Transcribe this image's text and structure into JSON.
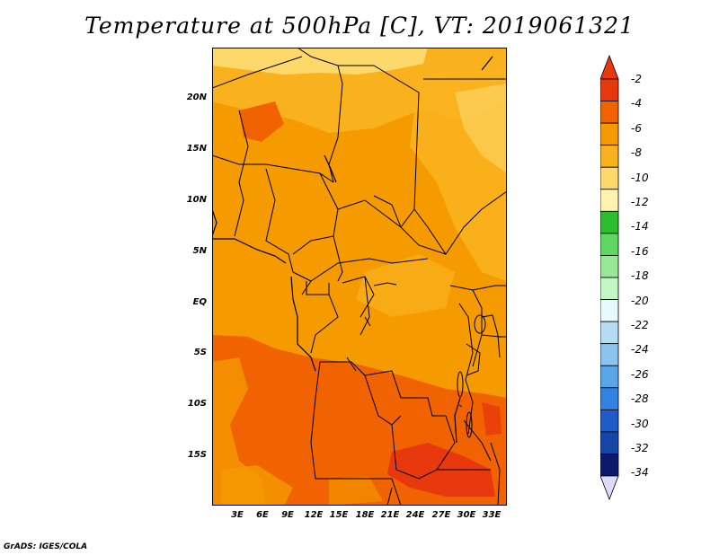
{
  "title": "Temperature at 500hPa [C], VT: 2019061321",
  "credit": "GrADS: IGES/COLA",
  "map": {
    "variable": "Temperature at 500hPa",
    "units": "C",
    "valid_time": "2019061321",
    "lat_labels": [
      "20N",
      "15N",
      "10N",
      "5N",
      "EQ",
      "5S",
      "10S",
      "15S"
    ],
    "lon_labels": [
      "3E",
      "6E",
      "9E",
      "12E",
      "15E",
      "18E",
      "21E",
      "24E",
      "27E",
      "30E",
      "33E"
    ],
    "lat_range": [
      -20,
      24.5
    ],
    "lon_range": [
      0,
      34.5
    ]
  },
  "colorbar": {
    "levels": [
      "-2",
      "-4",
      "-6",
      "-8",
      "-10",
      "-12",
      "-14",
      "-16",
      "-18",
      "-20",
      "-22",
      "-24",
      "-26",
      "-28",
      "-30",
      "-32",
      "-34"
    ],
    "colors": [
      "#e8380d",
      "#f06300",
      "#f59b00",
      "#f9b21e",
      "#fdd96b",
      "#fef4b0",
      "#2dbe2d",
      "#5fd65f",
      "#96e896",
      "#c4f5c4",
      "#e6fbfb",
      "#b4dcf5",
      "#8bc4ef",
      "#5aa4e8",
      "#3282e0",
      "#1e5cc8",
      "#1446a8",
      "#0c1a6e"
    ],
    "over_color": "#e8380d",
    "under_color": "#dcdcf8"
  }
}
